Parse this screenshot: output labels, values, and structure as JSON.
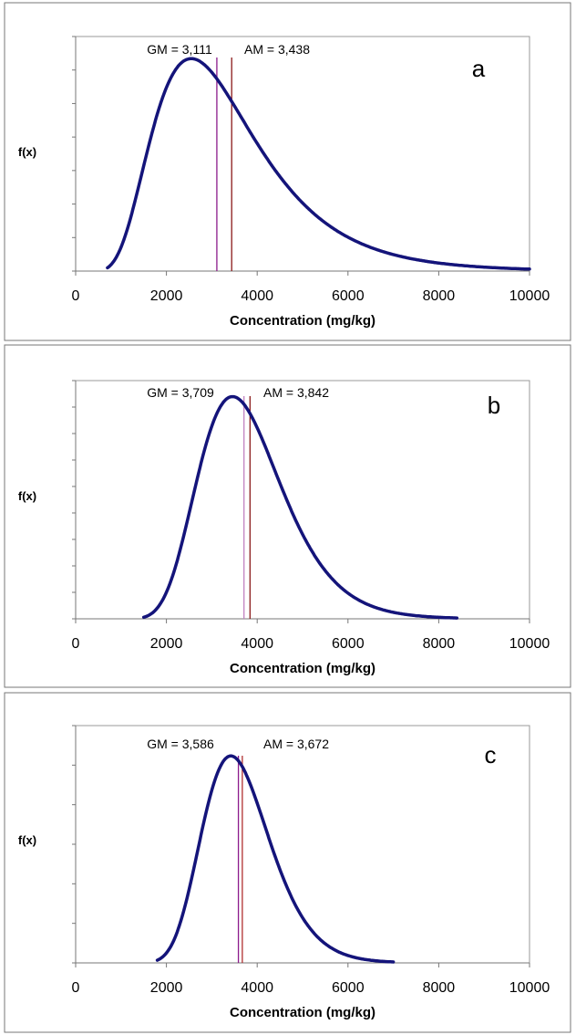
{
  "chart_data": [
    {
      "type": "line",
      "panel_label": "a",
      "xlabel": "Concentration (mg/kg)",
      "ylabel": "f(x)",
      "xlim": [
        0,
        10000
      ],
      "xticks": [
        "0",
        "2000",
        "4000",
        "6000",
        "8000",
        "10000"
      ],
      "ylim": [
        0,
        0.00035
      ],
      "ytick_step": 5e-05,
      "ytick_labels_shown": false,
      "grid": false,
      "distribution": "lognormal",
      "curve_x_range": [
        700,
        10000
      ],
      "gm": 3111,
      "am": 3438,
      "gm_label": "GM = 3,111",
      "am_label": "AM = 3,438",
      "curve_color": "#14147a",
      "gm_color": "#8b1a8b",
      "am_color": "#8b1a1a"
    },
    {
      "type": "line",
      "panel_label": "b",
      "xlabel": "Concentration (mg/kg)",
      "ylabel": "f(x)",
      "xlim": [
        0,
        10000
      ],
      "xticks": [
        "0",
        "2000",
        "4000",
        "6000",
        "8000",
        "10000"
      ],
      "ylim": [
        0,
        0.00045
      ],
      "ytick_step": 5e-05,
      "ytick_labels_shown": false,
      "grid": false,
      "distribution": "lognormal",
      "curve_x_range": [
        1500,
        8400
      ],
      "gm": 3709,
      "am": 3842,
      "gm_label": "GM = 3,709",
      "am_label": "AM = 3,842",
      "curve_color": "#14147a",
      "gm_color": "#c080c0",
      "am_color": "#8b1a1a"
    },
    {
      "type": "line",
      "panel_label": "c",
      "xlabel": "Concentration (mg/kg)",
      "ylabel": "f(x)",
      "xlim": [
        0,
        10000
      ],
      "xticks": [
        "0",
        "2000",
        "4000",
        "6000",
        "8000",
        "10000"
      ],
      "ylim": [
        0,
        0.0006
      ],
      "ytick_step": 0.0001,
      "ytick_labels_shown": false,
      "grid": false,
      "distribution": "lognormal",
      "curve_x_range": [
        1800,
        7000
      ],
      "gm": 3586,
      "am": 3672,
      "gm_label": "GM = 3,586",
      "am_label": "AM = 3,672",
      "curve_color": "#14147a",
      "gm_color": "#8b1a8b",
      "am_color": "#b03030"
    }
  ]
}
